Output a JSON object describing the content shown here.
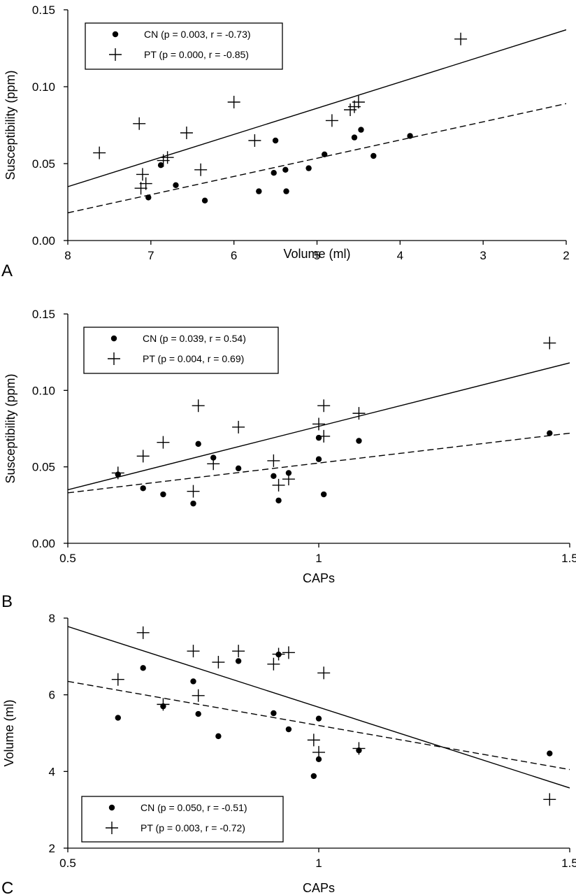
{
  "chart_data": [
    {
      "type": "scatter",
      "panel_label": "A",
      "xlabel": "Volume (ml)",
      "ylabel": "Susceptibility (ppm)",
      "xlim": [
        8,
        2
      ],
      "x_reversed": true,
      "ylim": [
        0,
        0.15
      ],
      "xticks": [
        8,
        7,
        6,
        5,
        4,
        3,
        2
      ],
      "xtick_labels": [
        "8",
        "7",
        "6",
        "5",
        "4",
        "3",
        "2"
      ],
      "yticks": [
        0,
        0.05,
        0.1,
        0.15
      ],
      "ytick_labels": [
        "0.00",
        "0.05",
        "0.10",
        "0.15"
      ],
      "legend": "top-left",
      "grid": false,
      "series": [
        {
          "name": "CN (p = 0.003, r = -0.73)",
          "marker": "dot",
          "line_style": "dashed",
          "fit": [
            [
              8,
              0.018
            ],
            [
              2,
              0.089
            ]
          ],
          "points": [
            [
              7.03,
              0.028
            ],
            [
              6.88,
              0.049
            ],
            [
              6.7,
              0.036
            ],
            [
              6.35,
              0.026
            ],
            [
              5.7,
              0.032
            ],
            [
              5.5,
              0.065
            ],
            [
              5.52,
              0.044
            ],
            [
              5.38,
              0.046
            ],
            [
              5.37,
              0.032
            ],
            [
              5.1,
              0.047
            ],
            [
              4.91,
              0.056
            ],
            [
              4.55,
              0.067
            ],
            [
              4.47,
              0.072
            ],
            [
              4.32,
              0.055
            ],
            [
              3.88,
              0.068
            ]
          ]
        },
        {
          "name": "PT (p = 0.000, r = -0.85)",
          "marker": "plus",
          "line_style": "solid",
          "fit": [
            [
              8,
              0.035
            ],
            [
              2,
              0.137
            ]
          ],
          "points": [
            [
              7.62,
              0.057
            ],
            [
              7.14,
              0.076
            ],
            [
              7.12,
              0.034
            ],
            [
              7.1,
              0.043
            ],
            [
              7.06,
              0.037
            ],
            [
              6.85,
              0.052
            ],
            [
              6.8,
              0.054
            ],
            [
              6.57,
              0.07
            ],
            [
              6.4,
              0.046
            ],
            [
              6.0,
              0.09
            ],
            [
              5.75,
              0.065
            ],
            [
              4.82,
              0.078
            ],
            [
              4.6,
              0.085
            ],
            [
              4.55,
              0.087
            ],
            [
              4.5,
              0.09
            ],
            [
              3.27,
              0.131
            ]
          ]
        }
      ]
    },
    {
      "type": "scatter",
      "panel_label": "B",
      "xlabel": "CAPs",
      "ylabel": "Susceptibility (ppm)",
      "xlim": [
        0.5,
        1.5
      ],
      "ylim": [
        0,
        0.15
      ],
      "xticks": [
        0.5,
        1,
        1.5
      ],
      "xtick_labels": [
        "0.5",
        "1",
        "1.5"
      ],
      "yticks": [
        0,
        0.05,
        0.1,
        0.15
      ],
      "ytick_labels": [
        "0.00",
        "0.05",
        "0.10",
        "0.15"
      ],
      "legend": "top-left",
      "grid": false,
      "series": [
        {
          "name": "CN (p = 0.039, r = 0.54)",
          "marker": "dot",
          "line_style": "dashed",
          "fit": [
            [
              0.5,
              0.033
            ],
            [
              1.5,
              0.072
            ]
          ],
          "points": [
            [
              0.6,
              0.045
            ],
            [
              0.65,
              0.036
            ],
            [
              0.69,
              0.032
            ],
            [
              0.75,
              0.026
            ],
            [
              0.76,
              0.065
            ],
            [
              0.79,
              0.056
            ],
            [
              0.84,
              0.049
            ],
            [
              0.91,
              0.044
            ],
            [
              0.92,
              0.028
            ],
            [
              0.94,
              0.046
            ],
            [
              1.0,
              0.069
            ],
            [
              1.0,
              0.055
            ],
            [
              1.01,
              0.032
            ],
            [
              1.08,
              0.067
            ],
            [
              1.46,
              0.072
            ]
          ]
        },
        {
          "name": "PT (p = 0.004, r = 0.69)",
          "marker": "plus",
          "line_style": "solid",
          "fit": [
            [
              0.5,
              0.035
            ],
            [
              1.5,
              0.118
            ]
          ],
          "points": [
            [
              0.6,
              0.046
            ],
            [
              0.65,
              0.057
            ],
            [
              0.69,
              0.066
            ],
            [
              0.75,
              0.034
            ],
            [
              0.76,
              0.09
            ],
            [
              0.79,
              0.052
            ],
            [
              0.84,
              0.076
            ],
            [
              0.91,
              0.054
            ],
            [
              0.92,
              0.038
            ],
            [
              0.94,
              0.042
            ],
            [
              1.0,
              0.078
            ],
            [
              1.01,
              0.09
            ],
            [
              1.01,
              0.07
            ],
            [
              1.08,
              0.085
            ],
            [
              1.46,
              0.131
            ]
          ]
        }
      ]
    },
    {
      "type": "scatter",
      "panel_label": "C",
      "xlabel": "CAPs",
      "ylabel": "Volume (ml)",
      "xlim": [
        0.5,
        1.5
      ],
      "ylim": [
        2,
        8
      ],
      "xticks": [
        0.5,
        1,
        1.5
      ],
      "xtick_labels": [
        "0.5",
        "1",
        "1.5"
      ],
      "yticks": [
        2,
        4,
        6,
        8
      ],
      "ytick_labels": [
        "2",
        "4",
        "6",
        "8"
      ],
      "legend": "bottom-left",
      "grid": false,
      "series": [
        {
          "name": "CN (p = 0.050, r = -0.51)",
          "marker": "dot",
          "line_style": "dashed",
          "fit": [
            [
              0.5,
              6.35
            ],
            [
              1.5,
              4.05
            ]
          ],
          "points": [
            [
              0.6,
              5.4
            ],
            [
              0.65,
              6.7
            ],
            [
              0.69,
              5.7
            ],
            [
              0.75,
              6.35
            ],
            [
              0.76,
              5.5
            ],
            [
              0.8,
              4.92
            ],
            [
              0.84,
              6.88
            ],
            [
              0.91,
              5.52
            ],
            [
              0.92,
              7.05
            ],
            [
              0.94,
              5.1
            ],
            [
              0.99,
              3.88
            ],
            [
              1.0,
              4.32
            ],
            [
              1.0,
              5.38
            ],
            [
              1.08,
              4.55
            ],
            [
              1.46,
              4.47
            ]
          ]
        },
        {
          "name": "PT (p = 0.003, r = -0.72)",
          "marker": "plus",
          "line_style": "solid",
          "fit": [
            [
              0.5,
              7.78
            ],
            [
              1.5,
              3.57
            ]
          ],
          "points": [
            [
              0.6,
              6.4
            ],
            [
              0.65,
              7.62
            ],
            [
              0.69,
              5.75
            ],
            [
              0.75,
              7.14
            ],
            [
              0.76,
              5.98
            ],
            [
              0.8,
              6.85
            ],
            [
              0.84,
              7.14
            ],
            [
              0.91,
              6.8
            ],
            [
              0.92,
              7.06
            ],
            [
              0.94,
              7.1
            ],
            [
              0.99,
              4.82
            ],
            [
              1.0,
              4.5
            ],
            [
              1.01,
              6.57
            ],
            [
              1.08,
              4.6
            ],
            [
              1.46,
              3.27
            ]
          ]
        }
      ]
    }
  ]
}
